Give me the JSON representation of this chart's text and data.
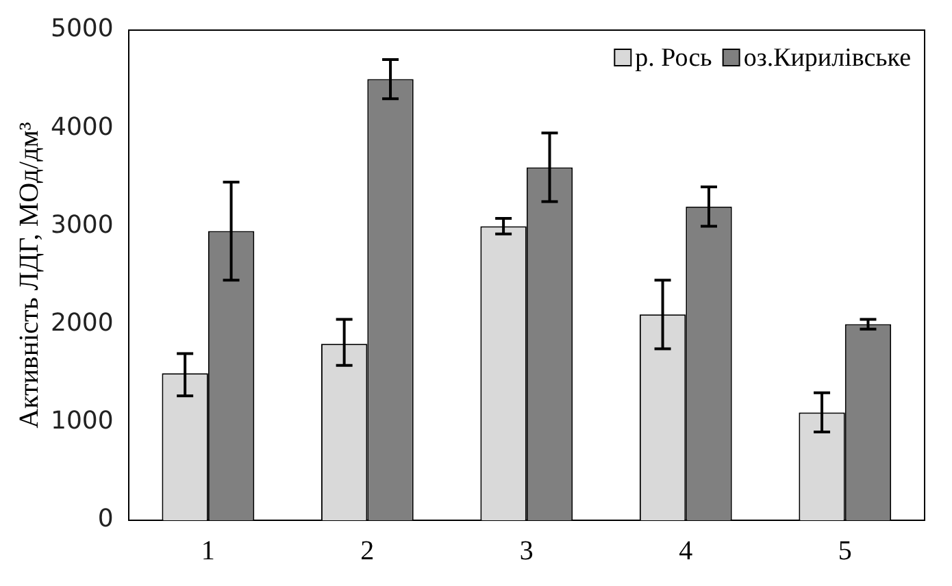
{
  "chart_data": {
    "type": "bar",
    "ylabel": "Активність ЛДГ, МОд/дм³",
    "categories": [
      "1",
      "2",
      "3",
      "4",
      "5"
    ],
    "series": [
      {
        "name": "р. Рось",
        "color": "#d9d9d9",
        "values": [
          1500,
          1800,
          3000,
          2100,
          1100
        ],
        "errors": [
          [
            1270,
            1700
          ],
          [
            1580,
            2050
          ],
          [
            2920,
            3080
          ],
          [
            1750,
            2450
          ],
          [
            900,
            1300
          ]
        ]
      },
      {
        "name": "оз.Кирилівське",
        "color": "#808080",
        "values": [
          2950,
          4500,
          3600,
          3200,
          2000
        ],
        "errors": [
          [
            2450,
            3450
          ],
          [
            4300,
            4700
          ],
          [
            3250,
            3950
          ],
          [
            3000,
            3400
          ],
          [
            1950,
            2050
          ]
        ]
      }
    ],
    "ylim": [
      0,
      5000
    ],
    "yticks": [
      0,
      1000,
      2000,
      3000,
      4000,
      5000
    ],
    "grid": false,
    "legend": "top right"
  }
}
